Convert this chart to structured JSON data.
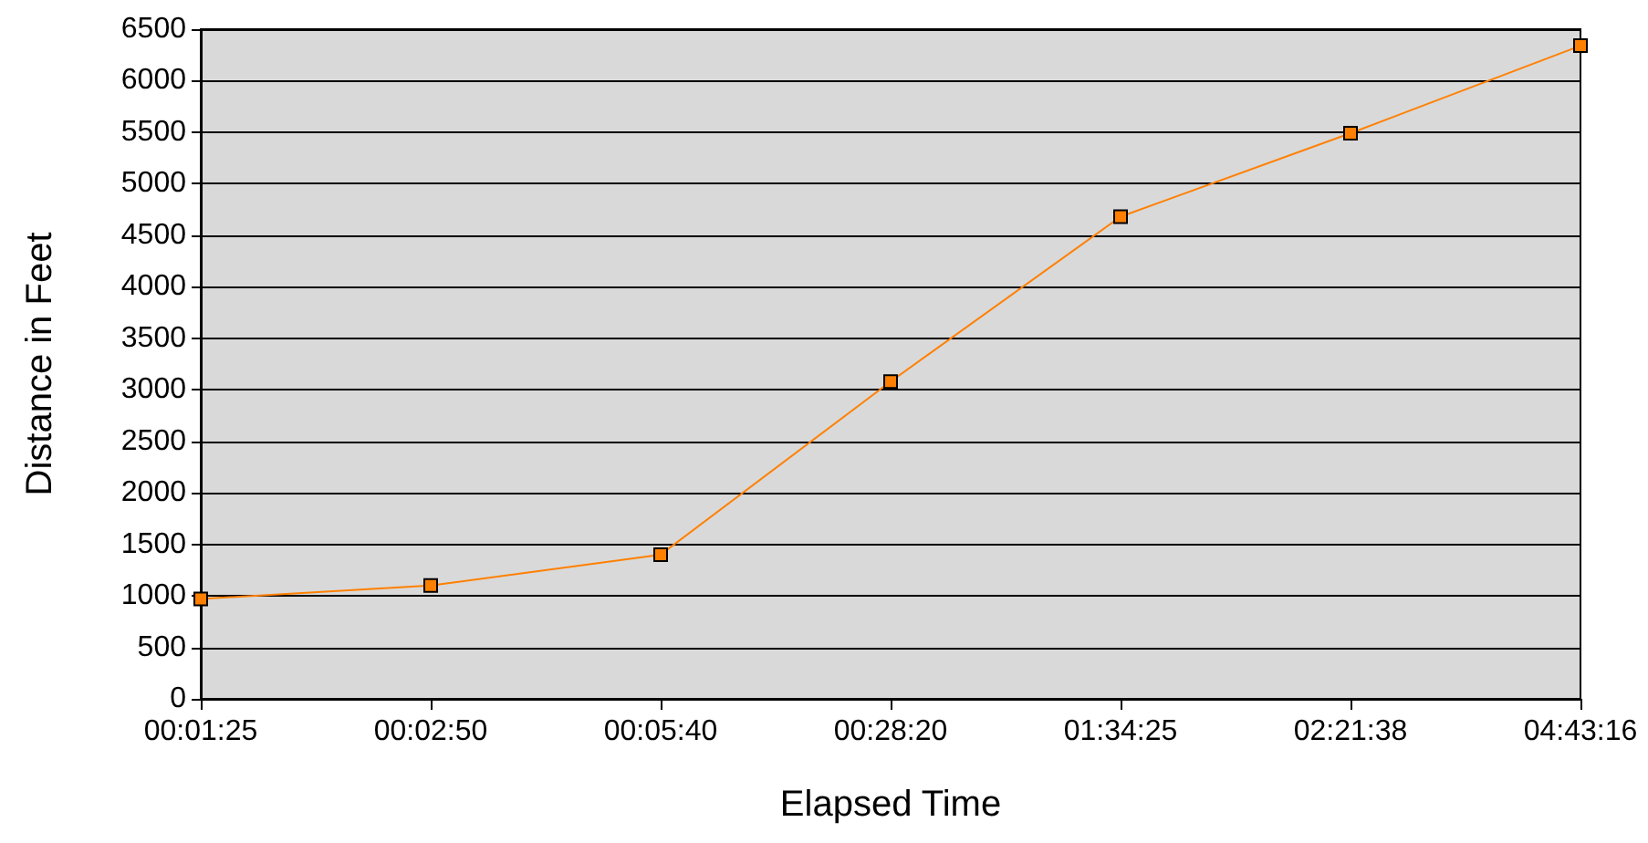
{
  "chart_data": {
    "type": "line",
    "xlabel": "Elapsed Time",
    "ylabel": "Distance in Feet",
    "categories": [
      "00:01:25",
      "00:02:50",
      "00:05:40",
      "00:28:20",
      "01:34:25",
      "02:21:38",
      "04:43:16"
    ],
    "series": [
      {
        "color": "#ff8000",
        "values": [
          970,
          1100,
          1400,
          3080,
          4680,
          5490,
          6340
        ]
      }
    ],
    "ylim": [
      0,
      6500
    ],
    "yticks": [
      0,
      500,
      1000,
      1500,
      2000,
      2500,
      3000,
      3500,
      4000,
      4500,
      5000,
      5500,
      6000,
      6500
    ],
    "grid": "y",
    "marker": "square",
    "line_style": "solid"
  }
}
